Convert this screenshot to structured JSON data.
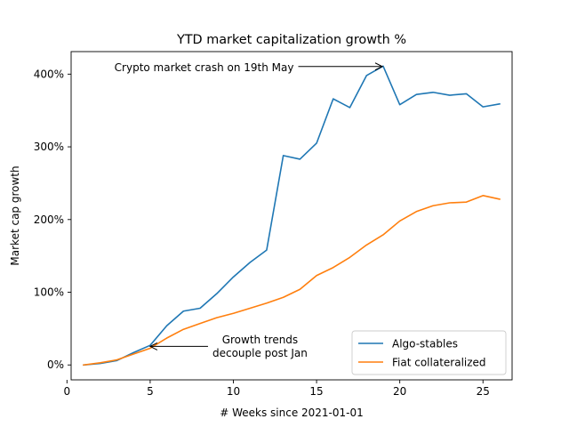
{
  "chart_data": {
    "type": "line",
    "title": "YTD market capitalization growth %",
    "xlabel": "# Weeks since 2021-01-01",
    "ylabel": "Market cap growth",
    "xlim": [
      0.25,
      26.75
    ],
    "ylim": [
      -20.5,
      431
    ],
    "x_ticks": [
      {
        "value": 0,
        "label": "0"
      },
      {
        "value": 5,
        "label": "5"
      },
      {
        "value": 10,
        "label": "10"
      },
      {
        "value": 15,
        "label": "15"
      },
      {
        "value": 20,
        "label": "20"
      },
      {
        "value": 25,
        "label": "25"
      }
    ],
    "y_ticks": [
      {
        "value": 0,
        "label": "0%"
      },
      {
        "value": 100,
        "label": "100%"
      },
      {
        "value": 200,
        "label": "200%"
      },
      {
        "value": 300,
        "label": "300%"
      },
      {
        "value": 400,
        "label": "400%"
      }
    ],
    "grid": false,
    "legend": {
      "placement": "lower-right"
    },
    "x": [
      1,
      2,
      3,
      4,
      5,
      6,
      7,
      8,
      9,
      10,
      11,
      12,
      13,
      14,
      15,
      16,
      17,
      18,
      19,
      20,
      21,
      22,
      23,
      24,
      25,
      26
    ],
    "series": [
      {
        "name": "Algo-stables",
        "color": "#1f77b4",
        "values": [
          0,
          2,
          6,
          17,
          27,
          54,
          74,
          78,
          98,
          121,
          141,
          158,
          288,
          283,
          305,
          366,
          354,
          398,
          411,
          358,
          372,
          375,
          371,
          373,
          355,
          359
        ]
      },
      {
        "name": "Fiat collateralized",
        "color": "#ff7f0e",
        "values": [
          0,
          3,
          7,
          15,
          23,
          37,
          49,
          57,
          65,
          71,
          78,
          85,
          93,
          104,
          123,
          134,
          148,
          165,
          179,
          198,
          211,
          219,
          223,
          224,
          233,
          228
        ]
      }
    ],
    "annotations": [
      {
        "id": "crash",
        "lines": [
          "Crypto market crash on 19th May"
        ],
        "align": "left",
        "text_x": 2.85,
        "text_y": 409.5,
        "arrow_to_x": 18.95,
        "arrow_to_y": 410.5
      },
      {
        "id": "decouple",
        "lines": [
          "Growth trends",
          "decouple post Jan"
        ],
        "align": "center",
        "text_x": 11.6,
        "text_y": 26,
        "arrow_to_x": 5.0,
        "arrow_to_y": 25.5
      }
    ]
  }
}
